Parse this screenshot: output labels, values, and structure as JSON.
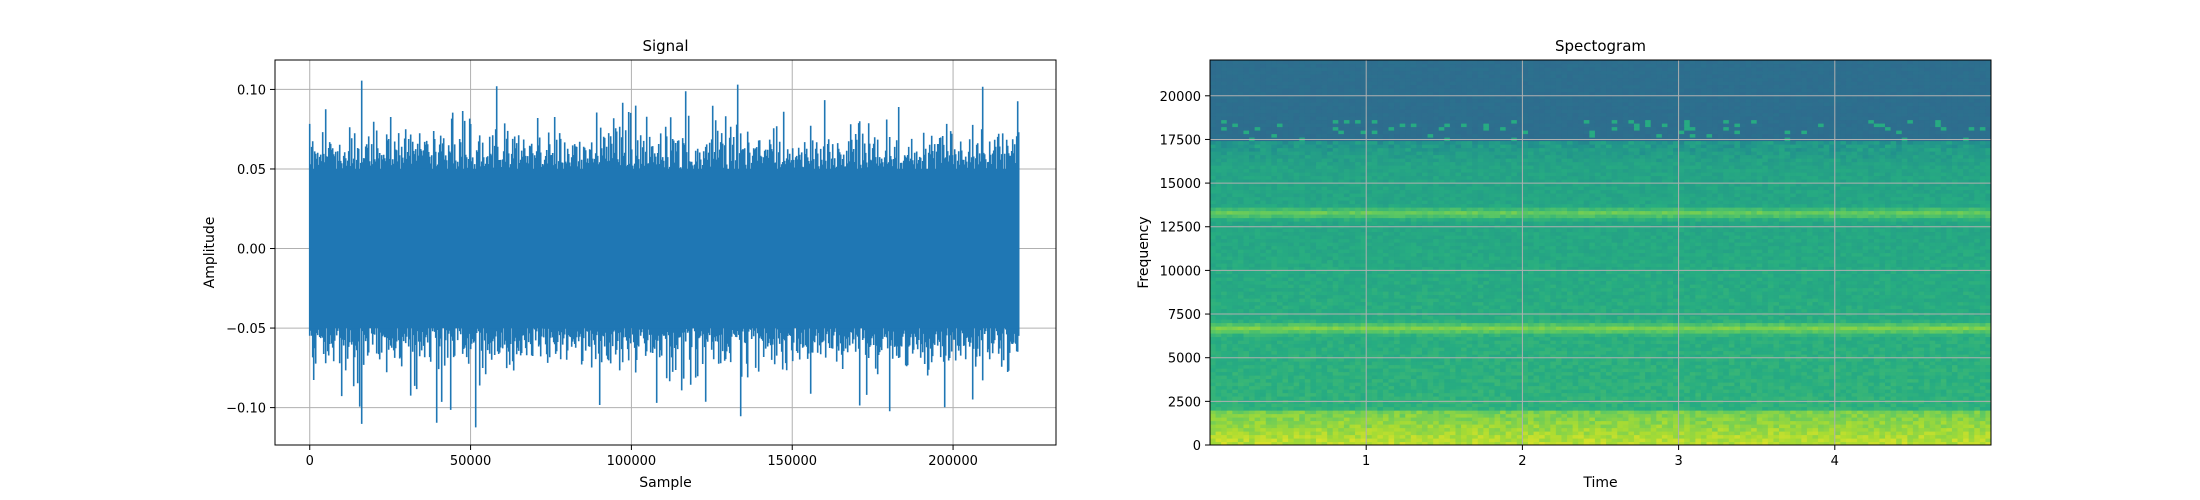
{
  "chart_data": [
    {
      "type": "line",
      "title": "Signal",
      "xlabel": "Sample",
      "ylabel": "Amplitude",
      "xlim": [
        -10800,
        232000
      ],
      "ylim": [
        -0.1235,
        0.1185
      ],
      "x_ticks": [
        0,
        50000,
        100000,
        150000,
        200000
      ],
      "x_tick_labels": [
        "0",
        "50000",
        "100000",
        "150000",
        "200000"
      ],
      "y_ticks": [
        -0.1,
        -0.05,
        0.0,
        0.05,
        0.1
      ],
      "y_tick_labels": [
        "−0.10",
        "−0.05",
        "0.00",
        "0.05",
        "0.10"
      ],
      "grid": true,
      "series": [
        {
          "color": "#1f77b4",
          "sample_count": 220500,
          "typical_amplitude": 0.05,
          "peak_max": 0.107,
          "peak_min": -0.113
        }
      ]
    },
    {
      "type": "heatmap",
      "title": "Spectogram",
      "xlabel": "Time",
      "ylabel": "Frequency",
      "xlim": [
        0,
        5
      ],
      "ylim": [
        0,
        22050
      ],
      "x_ticks": [
        1,
        2,
        3,
        4
      ],
      "x_tick_labels": [
        "1",
        "2",
        "3",
        "4"
      ],
      "y_ticks": [
        0,
        2500,
        5000,
        7500,
        10000,
        12500,
        15000,
        17500,
        20000
      ],
      "y_tick_labels": [
        "0",
        "2500",
        "5000",
        "7500",
        "10000",
        "12500",
        "15000",
        "17500",
        "20000"
      ],
      "grid": true,
      "colormap": "viridis",
      "features": {
        "high_energy_band_hz": [
          0,
          2000
        ],
        "bright_bands_hz": [
          6700,
          13300
        ],
        "rolloff_hz": 17500
      }
    }
  ]
}
